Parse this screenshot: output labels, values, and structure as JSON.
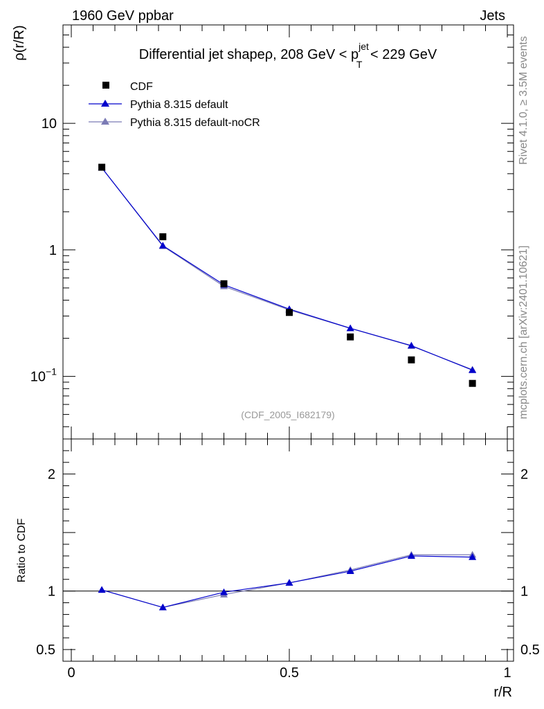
{
  "header": {
    "left": "1960 GeV ppbar",
    "right": "Jets",
    "side_rivet": "Rivet 4.1.0, ≥ 3.5M events",
    "side_mcplots": "mcplots.cern.ch [arXiv:2401.10621]",
    "watermark": "(CDF_2005_I682179)"
  },
  "chart_data": {
    "type": "line",
    "title": {
      "prefix": "Differential jet shapeρ, 208 GeV < p",
      "sup": "jet",
      "sub": "T",
      "suffix": " < 229 GeV"
    },
    "xlabel": "r/R",
    "xlim": [
      0,
      1
    ],
    "x_ticks": [
      {
        "value": 0,
        "label": "0"
      },
      {
        "value": 0.5,
        "label": "0.5"
      },
      {
        "value": 1,
        "label": "1"
      }
    ],
    "x": [
      0.07,
      0.21,
      0.35,
      0.5,
      0.64,
      0.78,
      0.92
    ],
    "main": {
      "ylabel": "ρ(r/R)",
      "yscale": "log",
      "ylim": [
        0.032,
        60
      ],
      "y_ticks": [
        {
          "value": 10,
          "label": "10"
        },
        {
          "value": 1,
          "label": "1"
        },
        {
          "value": 0.1,
          "label_base": "10",
          "label_exp": "−1"
        }
      ],
      "series": [
        {
          "name": "CDF",
          "marker": "square",
          "color": "#000000",
          "values": [
            4.5,
            1.27,
            0.54,
            0.32,
            0.205,
            0.135,
            0.088
          ]
        },
        {
          "name": "Pythia 8.315 default",
          "marker": "triangle",
          "color": "#0000cc",
          "values": [
            4.45,
            1.08,
            0.53,
            0.34,
            0.24,
            0.175,
            0.112
          ]
        },
        {
          "name": "Pythia 8.315 default-noCR",
          "marker": "triangle",
          "color": "#7b7bb5",
          "values": [
            4.45,
            1.07,
            0.515,
            0.335,
            0.24,
            0.174,
            0.113
          ]
        }
      ]
    },
    "ratio": {
      "ylabel": "Ratio to CDF",
      "ylim": [
        0.4,
        2.3
      ],
      "y_ticks": [
        {
          "value": 2,
          "label": "2"
        },
        {
          "value": 1,
          "label": "1"
        },
        {
          "value": 0.5,
          "label": "0.5"
        }
      ],
      "reference": 1,
      "series": [
        {
          "name": "Pythia 8.315 default",
          "color": "#0000cc",
          "values": [
            1.01,
            0.86,
            0.99,
            1.07,
            1.17,
            1.3,
            1.29
          ]
        },
        {
          "name": "Pythia 8.315 default-noCR",
          "color": "#7b7bb5",
          "values": [
            1.01,
            0.86,
            0.97,
            1.07,
            1.18,
            1.31,
            1.31
          ]
        }
      ]
    }
  }
}
